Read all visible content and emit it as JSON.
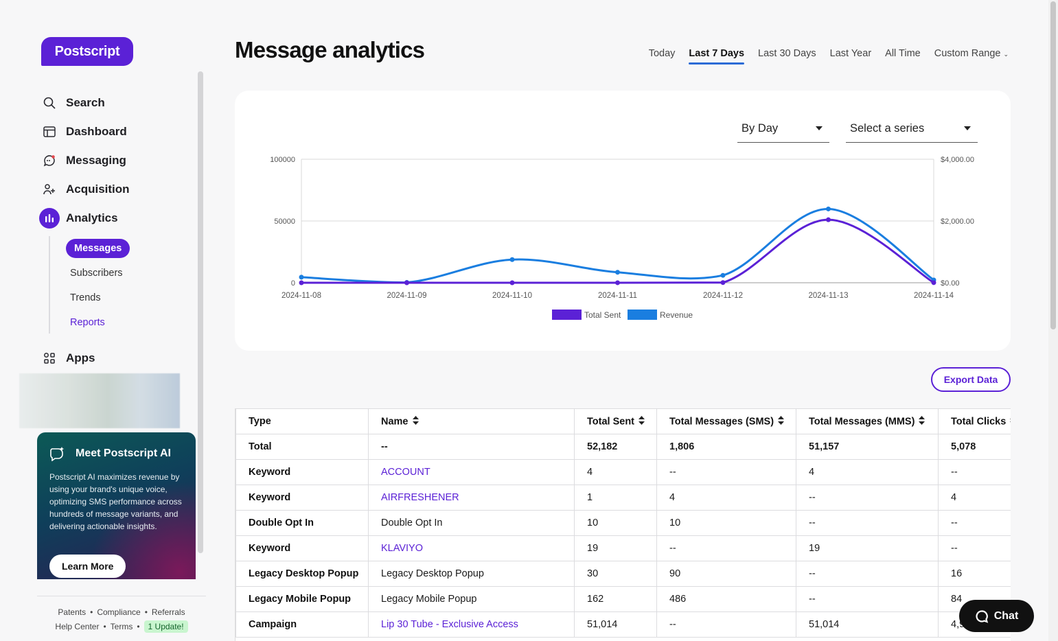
{
  "app": {
    "logo": "Postscript"
  },
  "nav": {
    "items": [
      {
        "label": "Search",
        "icon": "search-icon"
      },
      {
        "label": "Dashboard",
        "icon": "dashboard-icon"
      },
      {
        "label": "Messaging",
        "icon": "message-icon"
      },
      {
        "label": "Acquisition",
        "icon": "user-add-icon"
      },
      {
        "label": "Analytics",
        "icon": "bar-chart-icon",
        "active": true
      },
      {
        "label": "Apps",
        "icon": "apps-grid-icon"
      }
    ],
    "analytics_sub": [
      {
        "label": "Messages",
        "active": true
      },
      {
        "label": "Subscribers"
      },
      {
        "label": "Trends"
      },
      {
        "label": "Reports"
      }
    ]
  },
  "ai_promo": {
    "title": "Meet Postscript AI",
    "body": "Postscript AI maximizes revenue by using your brand's unique voice, optimizing SMS performance across hundreds of message variants, and delivering actionable insights.",
    "cta": "Learn More"
  },
  "footer": {
    "links": [
      "Patents",
      "Compliance",
      "Referrals",
      "Help Center",
      "Terms"
    ],
    "update_badge": "1 Update!"
  },
  "page": {
    "title": "Message analytics"
  },
  "range_tabs": [
    {
      "label": "Today"
    },
    {
      "label": "Last 7 Days",
      "active": true
    },
    {
      "label": "Last 30 Days"
    },
    {
      "label": "Last Year"
    },
    {
      "label": "All Time"
    },
    {
      "label": "Custom Range",
      "dropdown": true
    }
  ],
  "chart_controls": {
    "grouping": "By Day",
    "series_placeholder": "Select a series"
  },
  "chart_data": {
    "type": "line",
    "x": [
      "2024-11-08",
      "2024-11-09",
      "2024-11-10",
      "2024-11-11",
      "2024-11-12",
      "2024-11-13",
      "2024-11-14"
    ],
    "y_left_ticks": [
      "100000",
      "50000",
      "0"
    ],
    "y_right_ticks": [
      "$4,000.00",
      "$2,000.00",
      "$0.00"
    ],
    "ylim_left": [
      0,
      100000
    ],
    "ylim_right": [
      0,
      4000
    ],
    "series": [
      {
        "name": "Total Sent",
        "axis": "left",
        "color": "#5b21d6",
        "values": [
          4,
          1,
          10,
          30,
          162,
          51014,
          100
        ]
      },
      {
        "name": "Revenue",
        "axis": "right",
        "color": "#1a7ee0",
        "values": [
          180,
          10,
          750,
          340,
          240,
          2390,
          90
        ]
      }
    ],
    "legend": "bottom-center"
  },
  "export_label": "Export Data",
  "table": {
    "columns": [
      "Type",
      "Name",
      "Total Sent",
      "Total Messages (SMS)",
      "Total Messages (MMS)",
      "Total Clicks"
    ],
    "rows": [
      {
        "type": "Total",
        "name": "--",
        "sent": "52,182",
        "sms": "1,806",
        "mms": "51,157",
        "clicks": "5,078",
        "total": true
      },
      {
        "type": "Keyword",
        "name": "ACCOUNT",
        "link": true,
        "sent": "4",
        "sms": "--",
        "mms": "4",
        "clicks": "--"
      },
      {
        "type": "Keyword",
        "name": "AIRFRESHENER",
        "link": true,
        "sent": "1",
        "sms": "4",
        "mms": "--",
        "clicks": "4"
      },
      {
        "type": "Double Opt In",
        "name": "Double Opt In",
        "sent": "10",
        "sms": "10",
        "mms": "--",
        "clicks": "--"
      },
      {
        "type": "Keyword",
        "name": "KLAVIYO",
        "link": true,
        "sent": "19",
        "sms": "--",
        "mms": "19",
        "clicks": "--"
      },
      {
        "type": "Legacy Desktop Popup",
        "name": "Legacy Desktop Popup",
        "sent": "30",
        "sms": "90",
        "mms": "--",
        "clicks": "16"
      },
      {
        "type": "Legacy Mobile Popup",
        "name": "Legacy Mobile Popup",
        "sent": "162",
        "sms": "486",
        "mms": "--",
        "clicks": "84"
      },
      {
        "type": "Campaign",
        "name": "Lip 30 Tube - Exclusive Access",
        "link": true,
        "sent": "51,014",
        "sms": "--",
        "mms": "51,014",
        "clicks": "4,9"
      }
    ]
  },
  "chat": {
    "label": "Chat"
  }
}
